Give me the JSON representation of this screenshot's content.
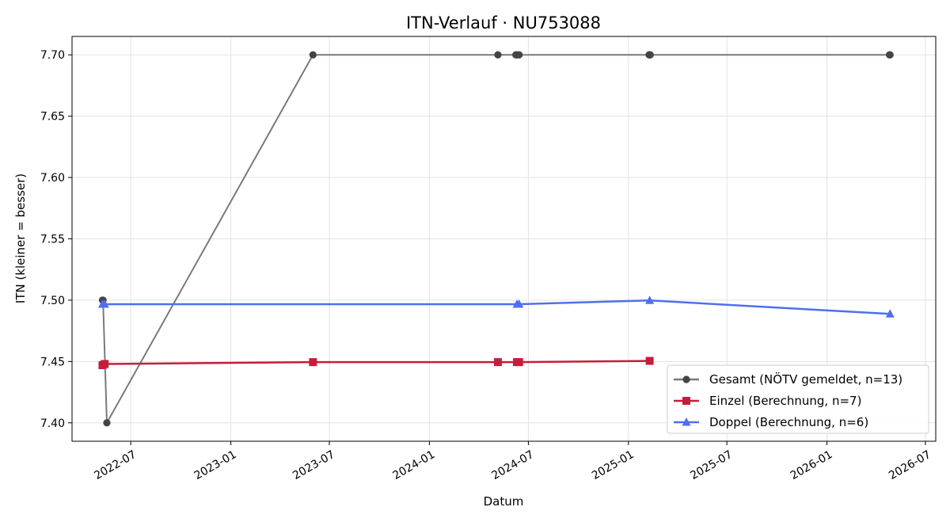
{
  "chart_data": {
    "type": "line",
    "title": "ITN-Verlauf · NU753088",
    "xlabel": "Datum",
    "ylabel": "ITN  (kleiner = besser)",
    "x_axis": {
      "kind": "date",
      "range": [
        "2022-03-15",
        "2026-07-20"
      ],
      "tick_labels": [
        "2022-07",
        "2023-01",
        "2023-07",
        "2024-01",
        "2024-07",
        "2025-01",
        "2025-07",
        "2026-01",
        "2026-07"
      ],
      "tick_dates": [
        "2022-07-01",
        "2023-01-01",
        "2023-07-01",
        "2024-01-01",
        "2024-07-01",
        "2025-01-01",
        "2025-07-01",
        "2026-01-01",
        "2026-07-01"
      ]
    },
    "y_axis": {
      "range": [
        7.385,
        7.715
      ],
      "ticks": [
        7.4,
        7.45,
        7.5,
        7.55,
        7.6,
        7.65,
        7.7
      ],
      "tick_labels": [
        "7.40",
        "7.45",
        "7.50",
        "7.55",
        "7.60",
        "7.65",
        "7.70"
      ]
    },
    "grid": true,
    "legend_position": "lower-right",
    "series": [
      {
        "name": "Gesamt (NÖTV gemeldet, n=13)",
        "color": "#444444",
        "line_color": "#7a7a7a",
        "marker": "circle",
        "points": [
          {
            "x": "2022-05-10",
            "y": 7.5
          },
          {
            "x": "2022-05-11",
            "y": 7.5
          },
          {
            "x": "2022-05-18",
            "y": 7.4
          },
          {
            "x": "2023-06-01",
            "y": 7.7
          },
          {
            "x": "2024-05-06",
            "y": 7.7
          },
          {
            "x": "2024-06-08",
            "y": 7.7
          },
          {
            "x": "2024-06-10",
            "y": 7.7
          },
          {
            "x": "2024-06-14",
            "y": 7.7
          },
          {
            "x": "2025-02-08",
            "y": 7.7
          },
          {
            "x": "2025-02-09",
            "y": 7.7
          },
          {
            "x": "2025-02-10",
            "y": 7.7
          },
          {
            "x": "2026-04-26",
            "y": 7.7
          },
          {
            "x": "2026-04-27",
            "y": 7.7
          }
        ]
      },
      {
        "name": "Einzel (Berechnung, n=7)",
        "color": "#c41e3a",
        "line_color": "#c41e3a",
        "marker": "square",
        "points": [
          {
            "x": "2022-05-10",
            "y": 7.447
          },
          {
            "x": "2022-05-14",
            "y": 7.448
          },
          {
            "x": "2023-06-01",
            "y": 7.4495
          },
          {
            "x": "2024-05-06",
            "y": 7.4495
          },
          {
            "x": "2024-06-10",
            "y": 7.4495
          },
          {
            "x": "2024-06-14",
            "y": 7.4495
          },
          {
            "x": "2025-02-09",
            "y": 7.4505
          }
        ]
      },
      {
        "name": "Doppel (Berechnung, n=6)",
        "color": "#4f6fef",
        "line_color": "#4f6fef",
        "marker": "triangle",
        "points": [
          {
            "x": "2022-05-10",
            "y": 7.4967
          },
          {
            "x": "2022-05-14",
            "y": 7.4967
          },
          {
            "x": "2024-06-10",
            "y": 7.4967
          },
          {
            "x": "2024-06-14",
            "y": 7.4967
          },
          {
            "x": "2025-02-09",
            "y": 7.4998
          },
          {
            "x": "2026-04-27",
            "y": 7.4888
          }
        ]
      }
    ]
  }
}
